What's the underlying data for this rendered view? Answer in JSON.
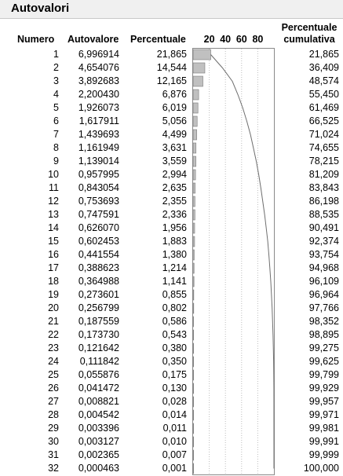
{
  "panel": {
    "title": "Autovalori"
  },
  "table": {
    "headers": {
      "numero": "Numero",
      "autovalore": "Autovalore",
      "percentuale": "Percentuale",
      "cumulativa_line1": "Percentuale",
      "cumulativa_line2": "cumulativa"
    },
    "rows": [
      {
        "numero": "1",
        "autovalore": "6,996914",
        "percentuale": "21,865",
        "cumulativa": "21,865"
      },
      {
        "numero": "2",
        "autovalore": "4,654076",
        "percentuale": "14,544",
        "cumulativa": "36,409"
      },
      {
        "numero": "3",
        "autovalore": "3,892683",
        "percentuale": "12,165",
        "cumulativa": "48,574"
      },
      {
        "numero": "4",
        "autovalore": "2,200430",
        "percentuale": "6,876",
        "cumulativa": "55,450"
      },
      {
        "numero": "5",
        "autovalore": "1,926073",
        "percentuale": "6,019",
        "cumulativa": "61,469"
      },
      {
        "numero": "6",
        "autovalore": "1,617911",
        "percentuale": "5,056",
        "cumulativa": "66,525"
      },
      {
        "numero": "7",
        "autovalore": "1,439693",
        "percentuale": "4,499",
        "cumulativa": "71,024"
      },
      {
        "numero": "8",
        "autovalore": "1,161949",
        "percentuale": "3,631",
        "cumulativa": "74,655"
      },
      {
        "numero": "9",
        "autovalore": "1,139014",
        "percentuale": "3,559",
        "cumulativa": "78,215"
      },
      {
        "numero": "10",
        "autovalore": "0,957995",
        "percentuale": "2,994",
        "cumulativa": "81,209"
      },
      {
        "numero": "11",
        "autovalore": "0,843054",
        "percentuale": "2,635",
        "cumulativa": "83,843"
      },
      {
        "numero": "12",
        "autovalore": "0,753693",
        "percentuale": "2,355",
        "cumulativa": "86,198"
      },
      {
        "numero": "13",
        "autovalore": "0,747591",
        "percentuale": "2,336",
        "cumulativa": "88,535"
      },
      {
        "numero": "14",
        "autovalore": "0,626070",
        "percentuale": "1,956",
        "cumulativa": "90,491"
      },
      {
        "numero": "15",
        "autovalore": "0,602453",
        "percentuale": "1,883",
        "cumulativa": "92,374"
      },
      {
        "numero": "16",
        "autovalore": "0,441554",
        "percentuale": "1,380",
        "cumulativa": "93,754"
      },
      {
        "numero": "17",
        "autovalore": "0,388623",
        "percentuale": "1,214",
        "cumulativa": "94,968"
      },
      {
        "numero": "18",
        "autovalore": "0,364988",
        "percentuale": "1,141",
        "cumulativa": "96,109"
      },
      {
        "numero": "19",
        "autovalore": "0,273601",
        "percentuale": "0,855",
        "cumulativa": "96,964"
      },
      {
        "numero": "20",
        "autovalore": "0,256799",
        "percentuale": "0,802",
        "cumulativa": "97,766"
      },
      {
        "numero": "21",
        "autovalore": "0,187559",
        "percentuale": "0,586",
        "cumulativa": "98,352"
      },
      {
        "numero": "22",
        "autovalore": "0,173730",
        "percentuale": "0,543",
        "cumulativa": "98,895"
      },
      {
        "numero": "23",
        "autovalore": "0,121642",
        "percentuale": "0,380",
        "cumulativa": "99,275"
      },
      {
        "numero": "24",
        "autovalore": "0,111842",
        "percentuale": "0,350",
        "cumulativa": "99,625"
      },
      {
        "numero": "25",
        "autovalore": "0,055876",
        "percentuale": "0,175",
        "cumulativa": "99,799"
      },
      {
        "numero": "26",
        "autovalore": "0,041472",
        "percentuale": "0,130",
        "cumulativa": "99,929"
      },
      {
        "numero": "27",
        "autovalore": "0,008821",
        "percentuale": "0,028",
        "cumulativa": "99,957"
      },
      {
        "numero": "28",
        "autovalore": "0,004542",
        "percentuale": "0,014",
        "cumulativa": "99,971"
      },
      {
        "numero": "29",
        "autovalore": "0,003396",
        "percentuale": "0,011",
        "cumulativa": "99,981"
      },
      {
        "numero": "30",
        "autovalore": "0,003127",
        "percentuale": "0,010",
        "cumulativa": "99,991"
      },
      {
        "numero": "31",
        "autovalore": "0,002365",
        "percentuale": "0,007",
        "cumulativa": "99,999"
      },
      {
        "numero": "32",
        "autovalore": "0,000463",
        "percentuale": "0,001",
        "cumulativa": "100,000"
      }
    ]
  },
  "chart_data": {
    "type": "bar",
    "orientation": "horizontal",
    "axis_ticks": [
      "20",
      "40",
      "60",
      "80"
    ],
    "xlim": [
      0,
      100
    ],
    "grid": true,
    "percent": [
      21.865,
      14.544,
      12.165,
      6.876,
      6.019,
      5.056,
      4.499,
      3.631,
      3.559,
      2.994,
      2.635,
      2.355,
      2.336,
      1.956,
      1.883,
      1.38,
      1.214,
      1.141,
      0.855,
      0.802,
      0.586,
      0.543,
      0.38,
      0.35,
      0.175,
      0.13,
      0.028,
      0.014,
      0.011,
      0.01,
      0.007,
      0.001
    ],
    "cumulative": [
      21.865,
      36.409,
      48.574,
      55.45,
      61.469,
      66.525,
      71.024,
      74.655,
      78.215,
      81.209,
      83.843,
      86.198,
      88.535,
      90.491,
      92.374,
      93.754,
      94.968,
      96.109,
      96.964,
      97.766,
      98.352,
      98.895,
      99.275,
      99.625,
      99.799,
      99.929,
      99.957,
      99.971,
      99.981,
      99.991,
      99.999,
      100.0
    ],
    "colors": {
      "bar_fill": "#c0c0c0",
      "bar_stroke": "#7a7a7a",
      "line": "#6e6e6e",
      "grid": "#bdbdbd"
    }
  }
}
